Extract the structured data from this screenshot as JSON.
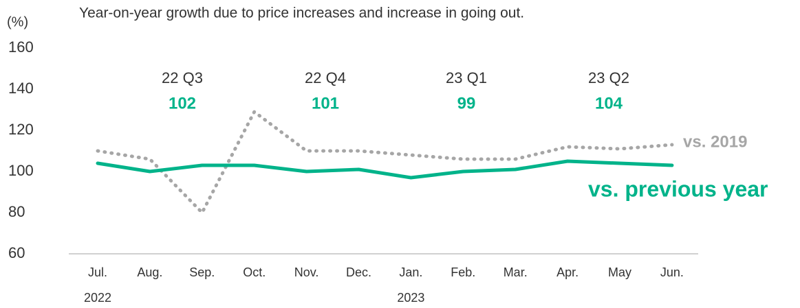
{
  "chart_data": {
    "type": "line",
    "title": "Year-on-year growth due to price increases and increase in going out.",
    "y_axis_label": "(%)",
    "categories": [
      "Jul.",
      "Aug.",
      "Sep.",
      "Oct.",
      "Nov.",
      "Dec.",
      "Jan.",
      "Feb.",
      "Mar.",
      "Apr.",
      "May",
      "Jun."
    ],
    "year_labels": [
      "2022",
      "2023"
    ],
    "series": [
      {
        "name": "vs. 2019",
        "color": "#a6a6a6",
        "dotted": true,
        "values": [
          110,
          106,
          80,
          129,
          110,
          110,
          108,
          106,
          106,
          112,
          111,
          113
        ]
      },
      {
        "name": "vs. previous year",
        "color": "#00b38a",
        "dotted": false,
        "values": [
          104,
          100,
          103,
          103,
          100,
          101,
          97,
          100,
          101,
          105,
          104,
          103
        ]
      }
    ],
    "quarters": [
      {
        "label": "22 Q3",
        "value": 102
      },
      {
        "label": "22 Q4",
        "value": 101
      },
      {
        "label": "23 Q1",
        "value": 99
      },
      {
        "label": "23 Q2",
        "value": 104
      }
    ],
    "ylim": [
      60,
      160
    ],
    "yticks": [
      60,
      80,
      100,
      120,
      140,
      160
    ],
    "grid": false
  }
}
